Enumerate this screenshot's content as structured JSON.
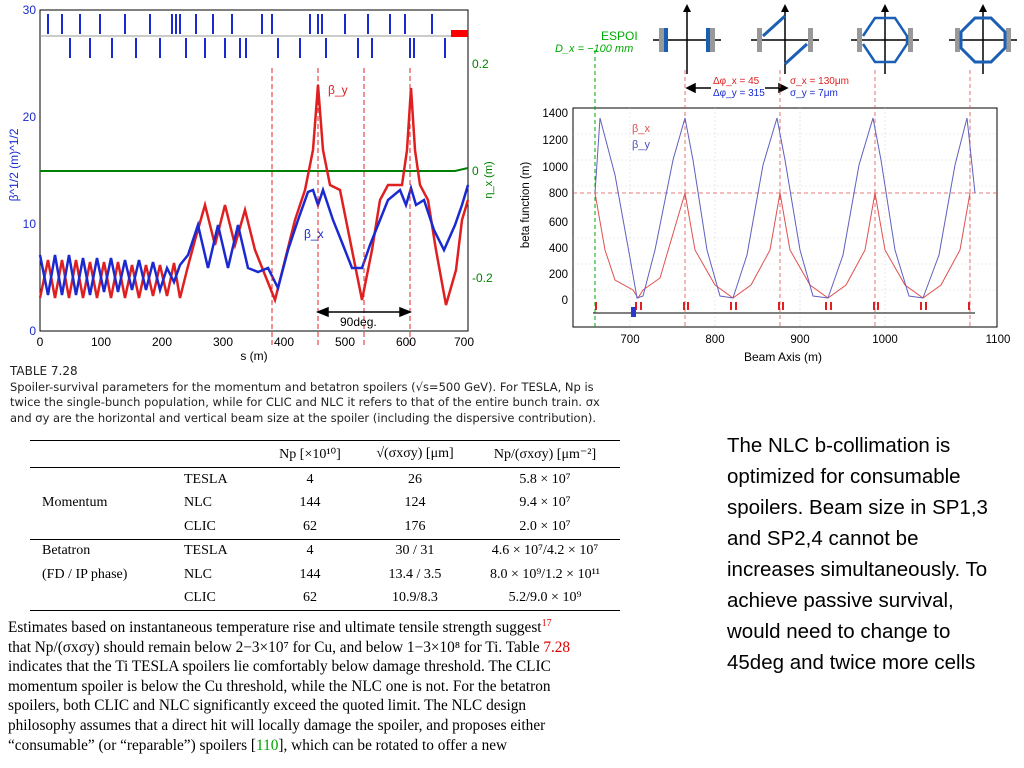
{
  "left_plot": {
    "y_left_ticks": [
      "0",
      "10",
      "20",
      "30"
    ],
    "y_right_ticks": [
      "0.2",
      "0",
      "-0.2"
    ],
    "x_ticks": [
      "0",
      "100",
      "200",
      "300",
      "400",
      "500",
      "600",
      "700"
    ],
    "xlabel": "s (m)",
    "ylabel_left": "β^1/2  (m)^1/2",
    "ylabel_right": "η_x (m)",
    "label_beta_y": "β_y",
    "label_beta_x": "β_x",
    "phase_label": "90deg.",
    "colors": {
      "beta_y": "#e02020",
      "beta_x": "#1a2ad0",
      "dispersion": "#008000",
      "marker": "#ff0000"
    }
  },
  "right_plot": {
    "espoi_label": "ESPOI",
    "espoi_offset": "D_x = −100 mm",
    "phase_advance": [
      "Δφ_x = 45",
      "Δφ_y = 315"
    ],
    "beam_size": [
      "σ_x = 130μm",
      "σ_y = 7μm"
    ],
    "legend": [
      "β_x",
      "β_y"
    ],
    "y_ticks": [
      "0",
      "200",
      "400",
      "600",
      "800",
      "1000",
      "1200",
      "1400"
    ],
    "x_ticks": [
      "700",
      "800",
      "900",
      "1000",
      "1100"
    ],
    "xlabel": "Beam Axis (m)",
    "ylabel": "beta function (m)",
    "colors": {
      "beta_x": "#e05050",
      "beta_y": "#5050c0",
      "espoi": "#00aa00"
    }
  },
  "caption": {
    "title": "TABLE 7.28",
    "lines": [
      "Spoiler-survival parameters for the momentum and betatron spoilers (√s=500 GeV). For TESLA, Np is",
      "twice the single-bunch population, while for CLIC and NLC it refers to that of the entire bunch train. σx",
      "and σy are the horizontal and vertical beam size at the spoiler (including the dispersive contribution)."
    ]
  },
  "table": {
    "headers": [
      "",
      "",
      "Np [×10¹⁰]",
      "√(σxσy) [μm]",
      "Np/(σxσy) [μm⁻²]"
    ],
    "groups": [
      {
        "name": "Momentum",
        "rows": [
          [
            "TESLA",
            "4",
            "26",
            "5.8 × 10⁷"
          ],
          [
            "NLC",
            "144",
            "124",
            "9.4 × 10⁷"
          ],
          [
            "CLIC",
            "62",
            "176",
            "2.0 × 10⁷"
          ]
        ]
      },
      {
        "name": "Betatron",
        "subname": "(FD / IP phase)",
        "rows": [
          [
            "TESLA",
            "4",
            "30 / 31",
            "4.6 × 10⁷/4.2 × 10⁷"
          ],
          [
            "NLC",
            "144",
            "13.4 / 3.5",
            "8.0 × 10⁹/1.2 × 10¹¹"
          ],
          [
            "CLIC",
            "62",
            "10.9/8.3",
            "5.2/9.0 × 10⁹"
          ]
        ]
      }
    ]
  },
  "paragraph": {
    "l1": "Estimates based on instantaneous temperature rise and ultimate tensile strength suggest",
    "l1_ref": "17",
    "l2a": "that Np/(σxσy) should remain below 2−3×10⁷ for Cu, and below 1−3×10⁸ for Ti. Table ",
    "l2_ref": "7.28",
    "l3": "indicates that the Ti TESLA spoilers lie comfortably below damage threshold. The CLIC",
    "l4": "momentum spoiler is below the Cu threshold, while the NLC one is not. For the betatron",
    "l5": "spoilers, both CLIC and NLC significantly exceed the quoted limit. The NLC design",
    "l6": "philosophy assumes that a direct hit will locally damage the spoiler, and proposes either",
    "l7a": "“consumable” (or “reparable”) spoilers [",
    "l7_cite": "110",
    "l7b": "], which can be rotated to offer a new"
  },
  "side_note": {
    "lines": [
      "The NLC b-collimation is",
      "optimized for consumable",
      "spoilers. Beam size in SP1,3",
      "and SP2,4 cannot be",
      "increases simultaneously. To",
      "achieve passive survival,",
      "would need to change to",
      "45deg and twice more cells"
    ]
  }
}
